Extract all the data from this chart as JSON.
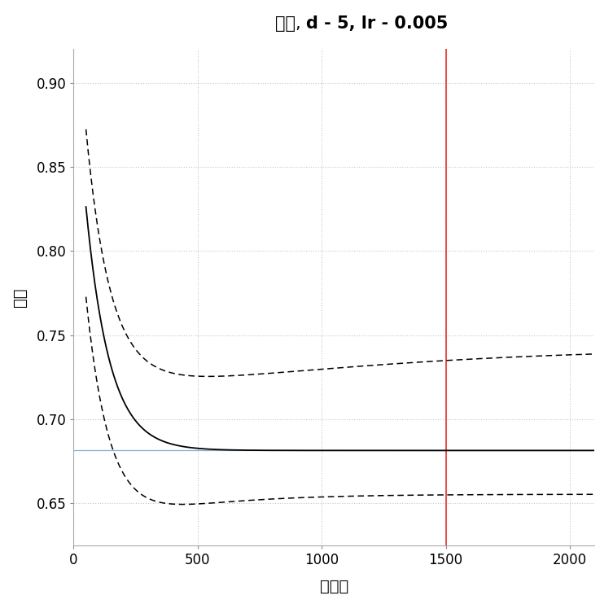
{
  "title_plain": "存在, ",
  "title_bold": "d - 5, lr - 0.005",
  "xlabel": "树数量",
  "ylabel": "偏差",
  "xlim": [
    0,
    2100
  ],
  "ylim": [
    0.625,
    0.92
  ],
  "yticks": [
    0.65,
    0.7,
    0.75,
    0.8,
    0.85,
    0.9
  ],
  "xticks": [
    0,
    500,
    1000,
    1500,
    2000
  ],
  "red_vline_x": 1500,
  "blue_hline_y": 0.6815,
  "curve_color": "#000000",
  "dashed_color": "#000000",
  "grid_color": "#c8c8c8",
  "background_color": "#ffffff",
  "plot_bg_color": "#ffffff"
}
